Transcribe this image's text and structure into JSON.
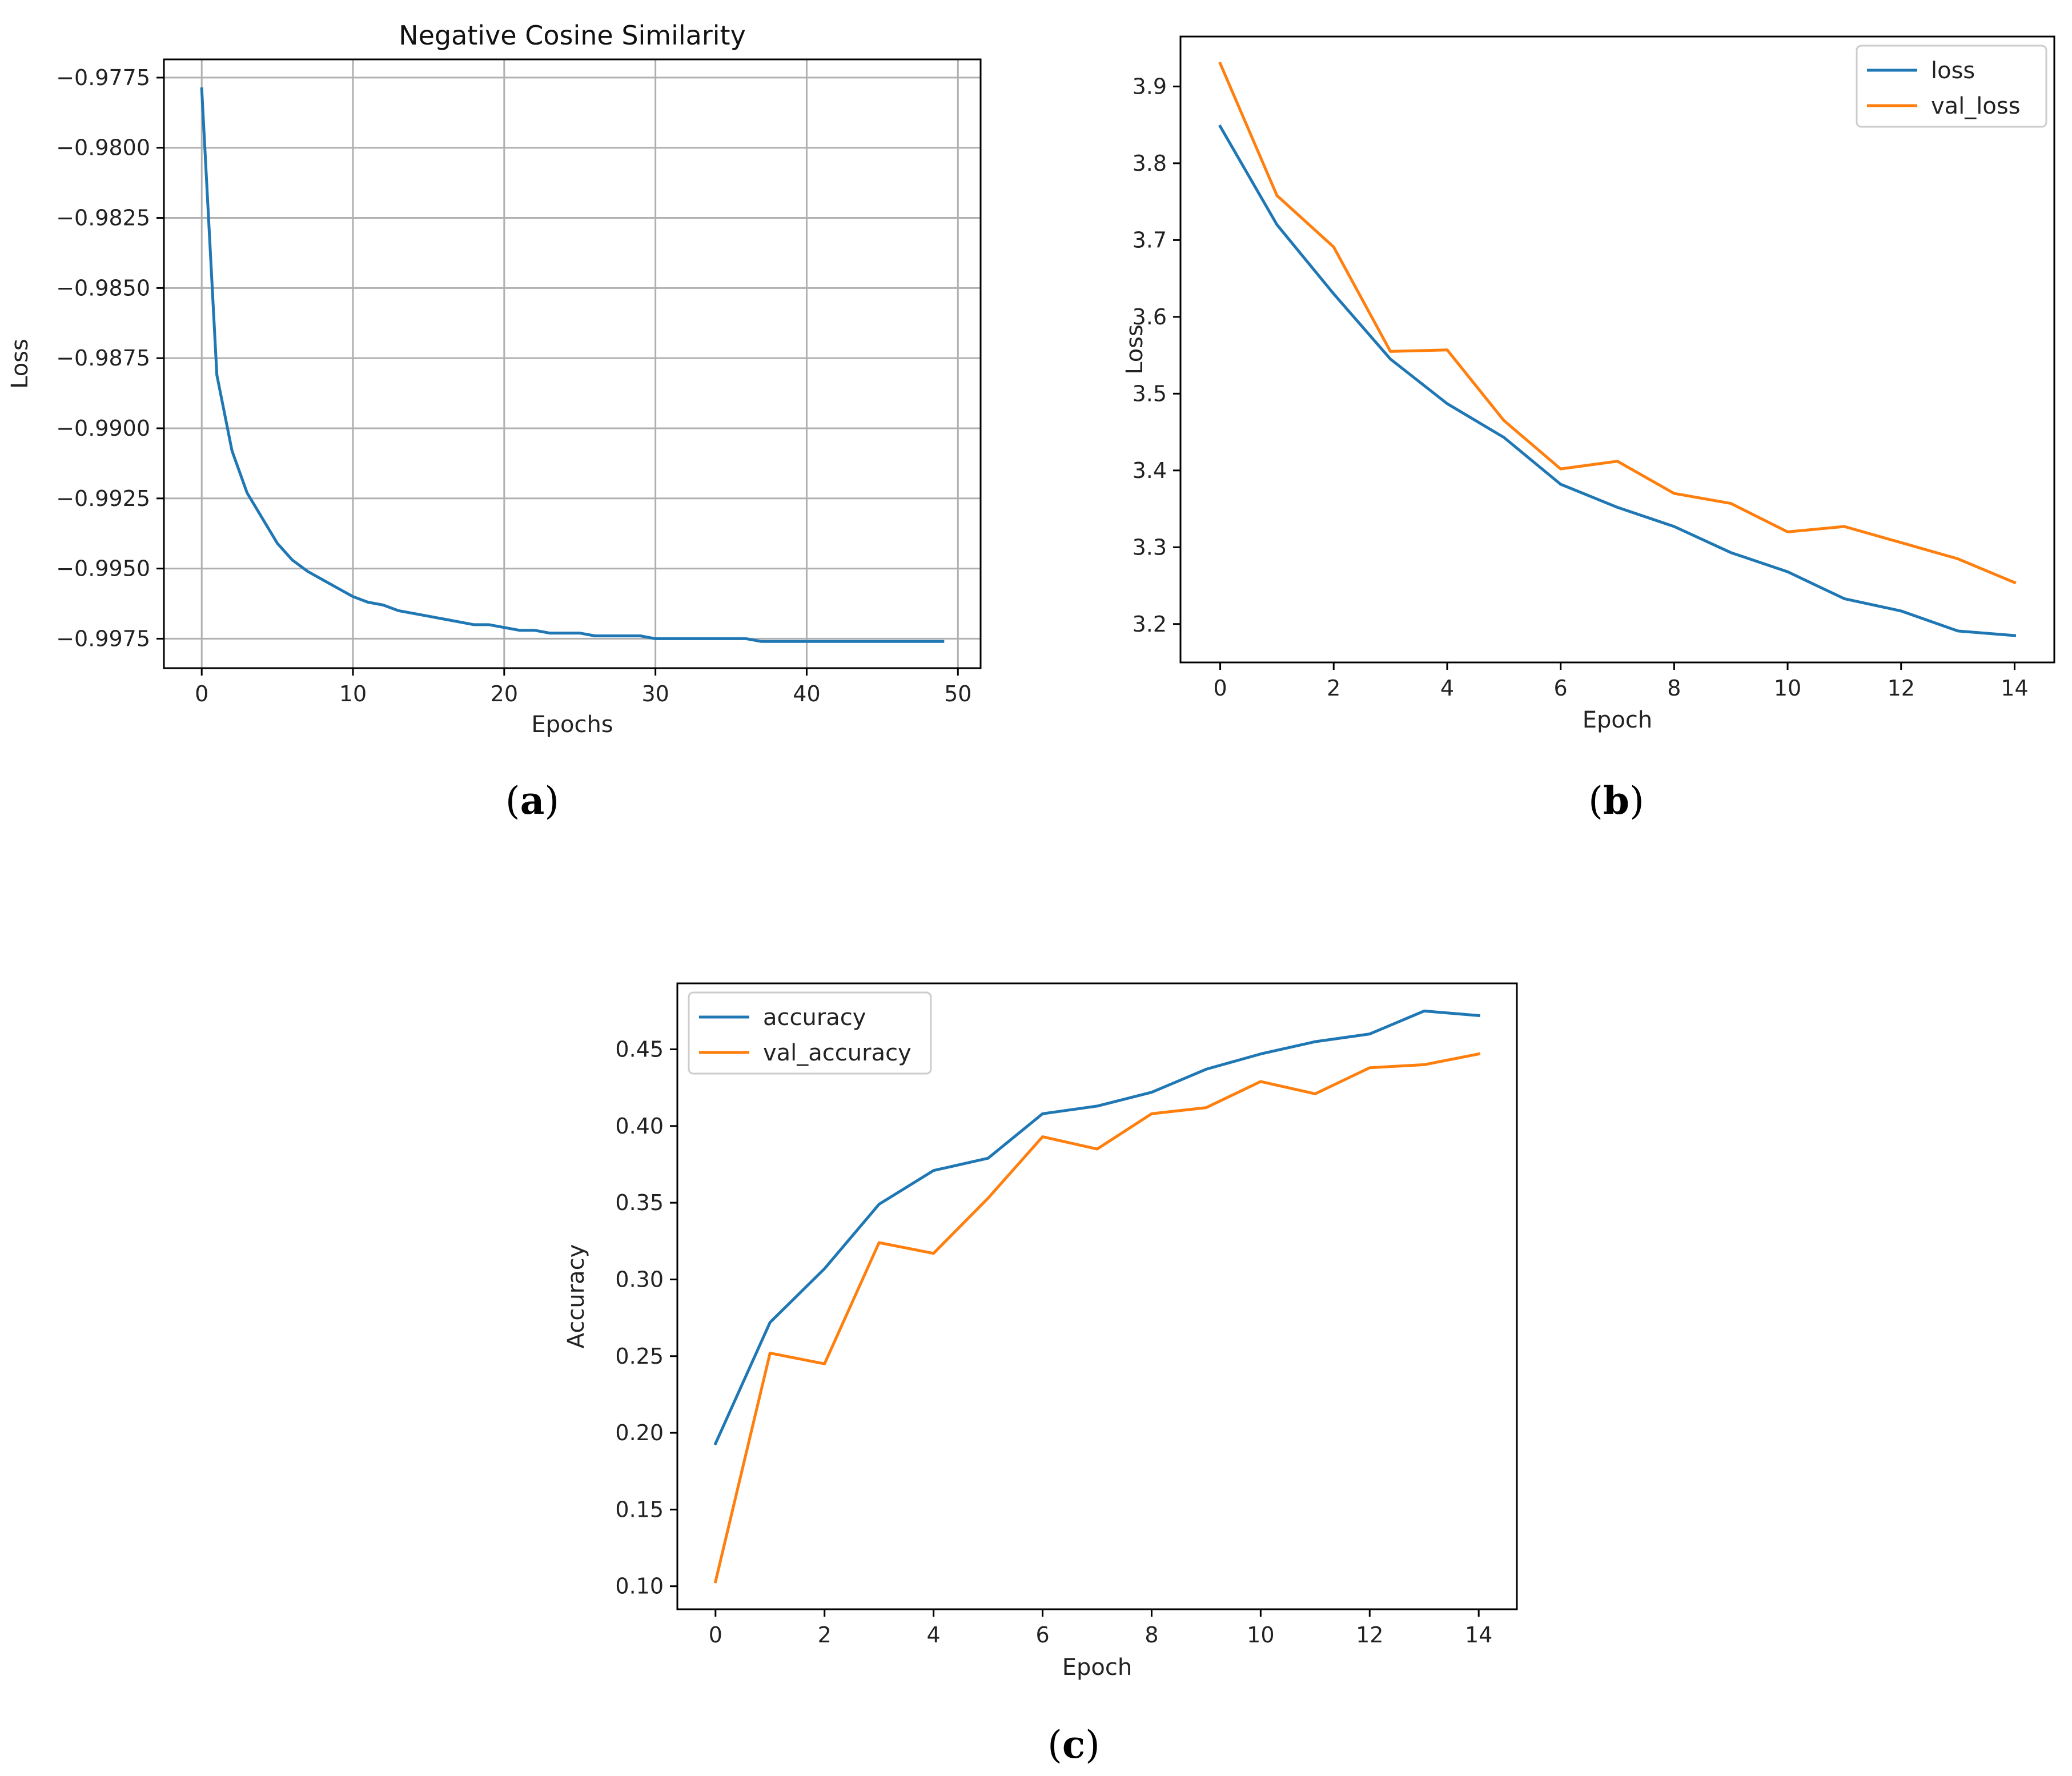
{
  "colors": {
    "blue": "#1f77b4",
    "orange": "#ff7f0e",
    "grid": "#b0b0b0",
    "axis": "#000000"
  },
  "captions": {
    "a": "a",
    "b": "b",
    "c": "c"
  },
  "chart_data": [
    {
      "id": "a",
      "type": "line",
      "title": "Negative Cosine Similarity",
      "xlabel": "Epochs",
      "ylabel": "Loss",
      "xlim": [
        -2.5,
        51.5
      ],
      "ylim": [
        -0.99855,
        -0.97685
      ],
      "xticks": [
        0,
        10,
        20,
        30,
        40,
        50
      ],
      "yticks": [
        -0.9775,
        -0.98,
        -0.9825,
        -0.985,
        -0.9875,
        -0.99,
        -0.9925,
        -0.995,
        -0.9975
      ],
      "ytick_labels": [
        "−0.9775",
        "−0.9800",
        "−0.9825",
        "−0.9850",
        "−0.9875",
        "−0.9900",
        "−0.9925",
        "−0.9950",
        "−0.9975"
      ],
      "grid": true,
      "legend": null,
      "series": [
        {
          "name": "loss",
          "color": "#1f77b4",
          "x": [
            0,
            1,
            2,
            3,
            4,
            5,
            6,
            7,
            8,
            9,
            10,
            11,
            12,
            13,
            14,
            15,
            16,
            17,
            18,
            19,
            20,
            21,
            22,
            23,
            24,
            25,
            26,
            27,
            28,
            29,
            30,
            31,
            32,
            33,
            34,
            35,
            36,
            37,
            38,
            39,
            40,
            41,
            42,
            43,
            44,
            45,
            46,
            47,
            48,
            49
          ],
          "y": [
            -0.9779,
            -0.9881,
            -0.9908,
            -0.9923,
            -0.9932,
            -0.9941,
            -0.9947,
            -0.9951,
            -0.9954,
            -0.9957,
            -0.996,
            -0.9962,
            -0.9963,
            -0.9965,
            -0.9966,
            -0.9967,
            -0.9968,
            -0.9969,
            -0.997,
            -0.997,
            -0.9971,
            -0.9972,
            -0.9972,
            -0.9973,
            -0.9973,
            -0.9973,
            -0.9974,
            -0.9974,
            -0.9974,
            -0.9974,
            -0.9975,
            -0.9975,
            -0.9975,
            -0.9975,
            -0.9975,
            -0.9975,
            -0.9975,
            -0.9976,
            -0.9976,
            -0.9976,
            -0.9976,
            -0.9976,
            -0.9976,
            -0.9976,
            -0.9976,
            -0.9976,
            -0.9976,
            -0.9976,
            -0.9976,
            -0.9976
          ]
        }
      ]
    },
    {
      "id": "b",
      "type": "line",
      "title": "",
      "xlabel": "Epoch",
      "ylabel": "Loss",
      "xlim": [
        -0.7,
        14.7
      ],
      "ylim": [
        3.15,
        3.965
      ],
      "xticks": [
        0,
        2,
        4,
        6,
        8,
        10,
        12,
        14
      ],
      "yticks": [
        3.2,
        3.3,
        3.4,
        3.5,
        3.6,
        3.7,
        3.8,
        3.9
      ],
      "ytick_labels": [
        "3.2",
        "3.3",
        "3.4",
        "3.5",
        "3.6",
        "3.7",
        "3.8",
        "3.9"
      ],
      "grid": false,
      "legend": "top-right",
      "series": [
        {
          "name": "loss",
          "color": "#1f77b4",
          "x": [
            0,
            1,
            2,
            3,
            4,
            5,
            6,
            7,
            8,
            9,
            10,
            11,
            12,
            13,
            14
          ],
          "y": [
            3.848,
            3.72,
            3.63,
            3.545,
            3.487,
            3.443,
            3.382,
            3.352,
            3.327,
            3.293,
            3.268,
            3.233,
            3.217,
            3.191,
            3.185
          ]
        },
        {
          "name": "val_loss",
          "color": "#ff7f0e",
          "x": [
            0,
            1,
            2,
            3,
            4,
            5,
            6,
            7,
            8,
            9,
            10,
            11,
            12,
            13,
            14
          ],
          "y": [
            3.93,
            3.758,
            3.691,
            3.555,
            3.557,
            3.465,
            3.402,
            3.412,
            3.37,
            3.357,
            3.32,
            3.327,
            3.306,
            3.285,
            3.254
          ]
        }
      ]
    },
    {
      "id": "c",
      "type": "line",
      "title": "",
      "xlabel": "Epoch",
      "ylabel": "Accuracy",
      "xlim": [
        -0.7,
        14.7
      ],
      "ylim": [
        0.085,
        0.493
      ],
      "xticks": [
        0,
        2,
        4,
        6,
        8,
        10,
        12,
        14
      ],
      "yticks": [
        0.1,
        0.15,
        0.2,
        0.25,
        0.3,
        0.35,
        0.4,
        0.45
      ],
      "ytick_labels": [
        "0.10",
        "0.15",
        "0.20",
        "0.25",
        "0.30",
        "0.35",
        "0.40",
        "0.45"
      ],
      "grid": false,
      "legend": "top-left",
      "series": [
        {
          "name": "accuracy",
          "color": "#1f77b4",
          "x": [
            0,
            1,
            2,
            3,
            4,
            5,
            6,
            7,
            8,
            9,
            10,
            11,
            12,
            13,
            14
          ],
          "y": [
            0.193,
            0.272,
            0.307,
            0.349,
            0.371,
            0.379,
            0.408,
            0.413,
            0.422,
            0.437,
            0.447,
            0.455,
            0.46,
            0.475,
            0.472
          ]
        },
        {
          "name": "val_accuracy",
          "color": "#ff7f0e",
          "x": [
            0,
            1,
            2,
            3,
            4,
            5,
            6,
            7,
            8,
            9,
            10,
            11,
            12,
            13,
            14
          ],
          "y": [
            0.103,
            0.252,
            0.245,
            0.324,
            0.317,
            0.353,
            0.393,
            0.385,
            0.408,
            0.412,
            0.429,
            0.421,
            0.438,
            0.44,
            0.447
          ]
        }
      ]
    }
  ]
}
